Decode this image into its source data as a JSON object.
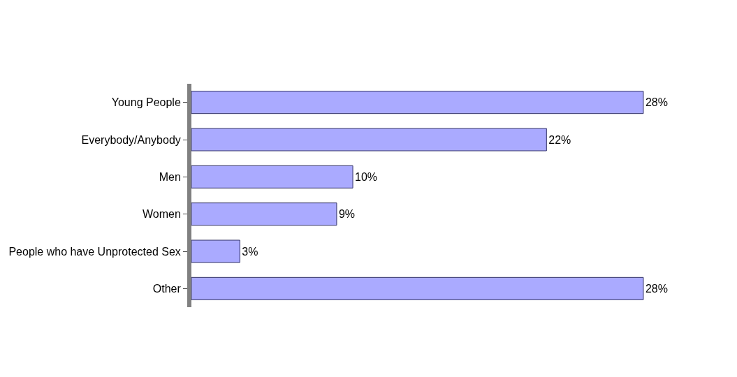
{
  "chart_data": {
    "type": "bar",
    "orientation": "horizontal",
    "categories": [
      "Young People",
      "Everybody/Anybody",
      "Men",
      "Women",
      "People who have Unprotected Sex",
      "Other"
    ],
    "values": [
      28,
      22,
      10,
      9,
      3,
      28
    ],
    "value_labels": [
      "28%",
      "22%",
      "10%",
      "9%",
      "3%",
      "28%"
    ],
    "color": "#aaaaff"
  }
}
